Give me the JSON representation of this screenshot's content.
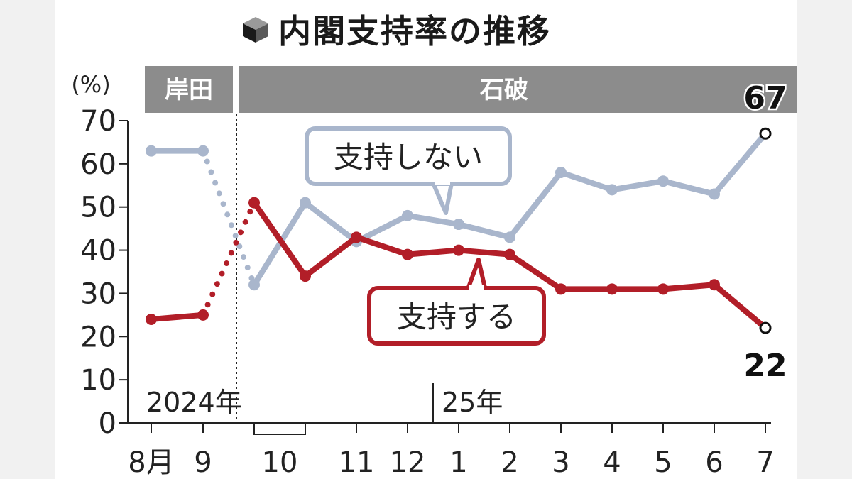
{
  "header": {
    "title": "内閣支持率の推移"
  },
  "chart_data": {
    "type": "line",
    "title": "内閣支持率の推移",
    "ylabel": "(%)",
    "ylim": [
      0,
      70
    ],
    "y_ticks": [
      "0",
      "10",
      "20",
      "30",
      "40",
      "50",
      "60",
      "70"
    ],
    "x_ticks": [
      "8月",
      "9",
      "10",
      "11",
      "12",
      "1",
      "2",
      "3",
      "4",
      "5",
      "6",
      "7"
    ],
    "year_labels": [
      "2024年",
      "25年"
    ],
    "periods": [
      {
        "label": "岸田",
        "color": "#8c8c8c"
      },
      {
        "label": "石破",
        "color": "#8c8c8c"
      }
    ],
    "series": [
      {
        "name": "支持しない",
        "color": "#a9b6cc",
        "values": [
          63,
          63,
          32,
          51,
          42,
          48,
          46,
          43,
          58,
          54,
          56,
          53,
          67
        ]
      },
      {
        "name": "支持する",
        "color": "#b21e28",
        "values": [
          24,
          25,
          51,
          34,
          43,
          39,
          40,
          39,
          31,
          31,
          31,
          32,
          22
        ]
      }
    ],
    "annotations": {
      "last_high": "67",
      "last_low": "22"
    }
  }
}
